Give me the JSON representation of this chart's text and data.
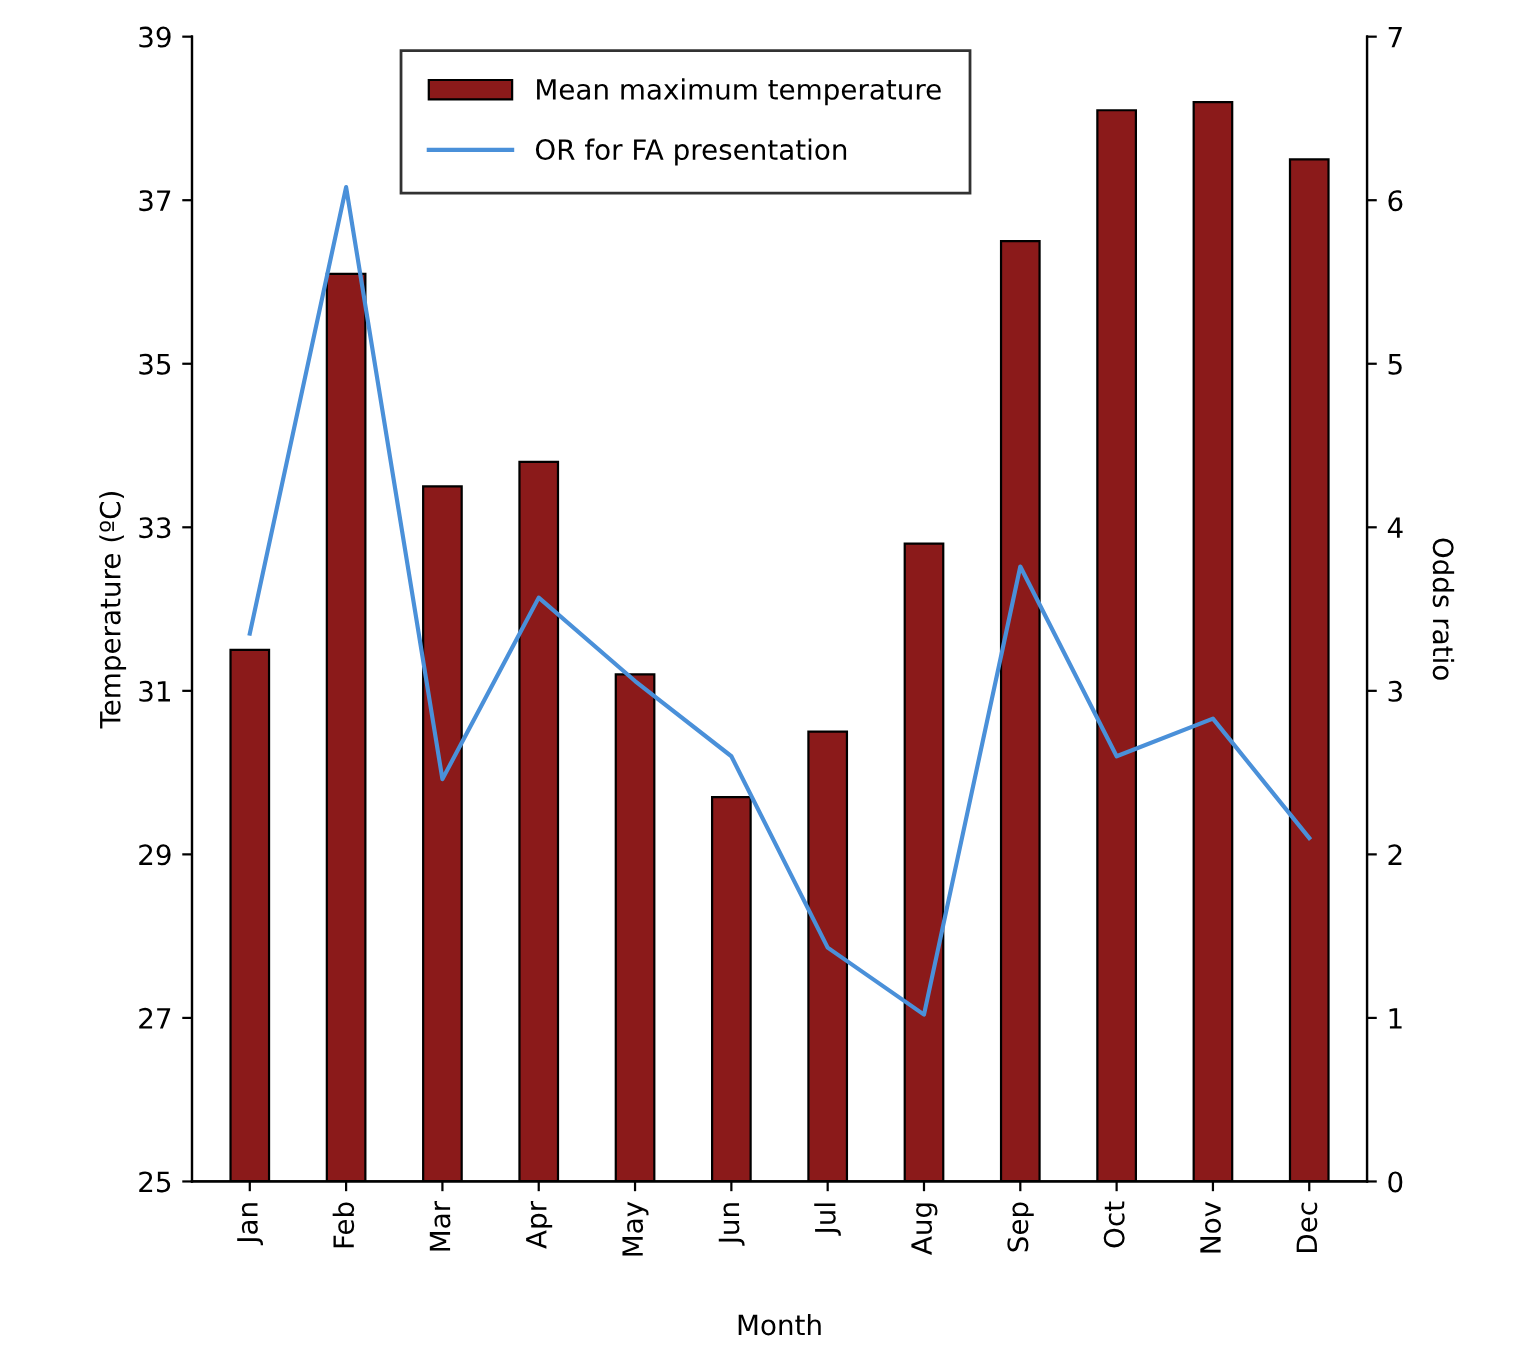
{
  "chart_data": {
    "type": "bar",
    "xlabel": "Month",
    "ylabel": "Temperature (ºC)",
    "y2label": "Odds ratio",
    "categories": [
      "Jan",
      "Feb",
      "Mar",
      "Apr",
      "May",
      "Jun",
      "Jul",
      "Aug",
      "Sep",
      "Oct",
      "Nov",
      "Dec"
    ],
    "series": [
      {
        "name": "Mean maximum temperature",
        "color": "#8b1a1a",
        "values": [
          31.5,
          36.1,
          33.5,
          33.8,
          31.2,
          29.7,
          30.5,
          32.8,
          36.5,
          38.1,
          38.2,
          37.5
        ]
      },
      {
        "name": "OR for FA presentation",
        "type": "line",
        "axis": "y2",
        "color": "#4a90d9",
        "values": [
          3.35,
          6.08,
          2.46,
          3.57,
          3.06,
          2.6,
          1.43,
          1.02,
          3.76,
          2.6,
          2.83,
          2.1
        ]
      }
    ],
    "ylim": [
      25,
      39
    ],
    "yticks": [
      25,
      27,
      29,
      31,
      33,
      35,
      37,
      39
    ],
    "y2lim": [
      0,
      7
    ],
    "y2ticks": [
      0,
      1,
      2,
      3,
      4,
      5,
      6,
      7
    ],
    "grid": false,
    "legend": "top",
    "marker": "none",
    "line_style": "solid"
  }
}
